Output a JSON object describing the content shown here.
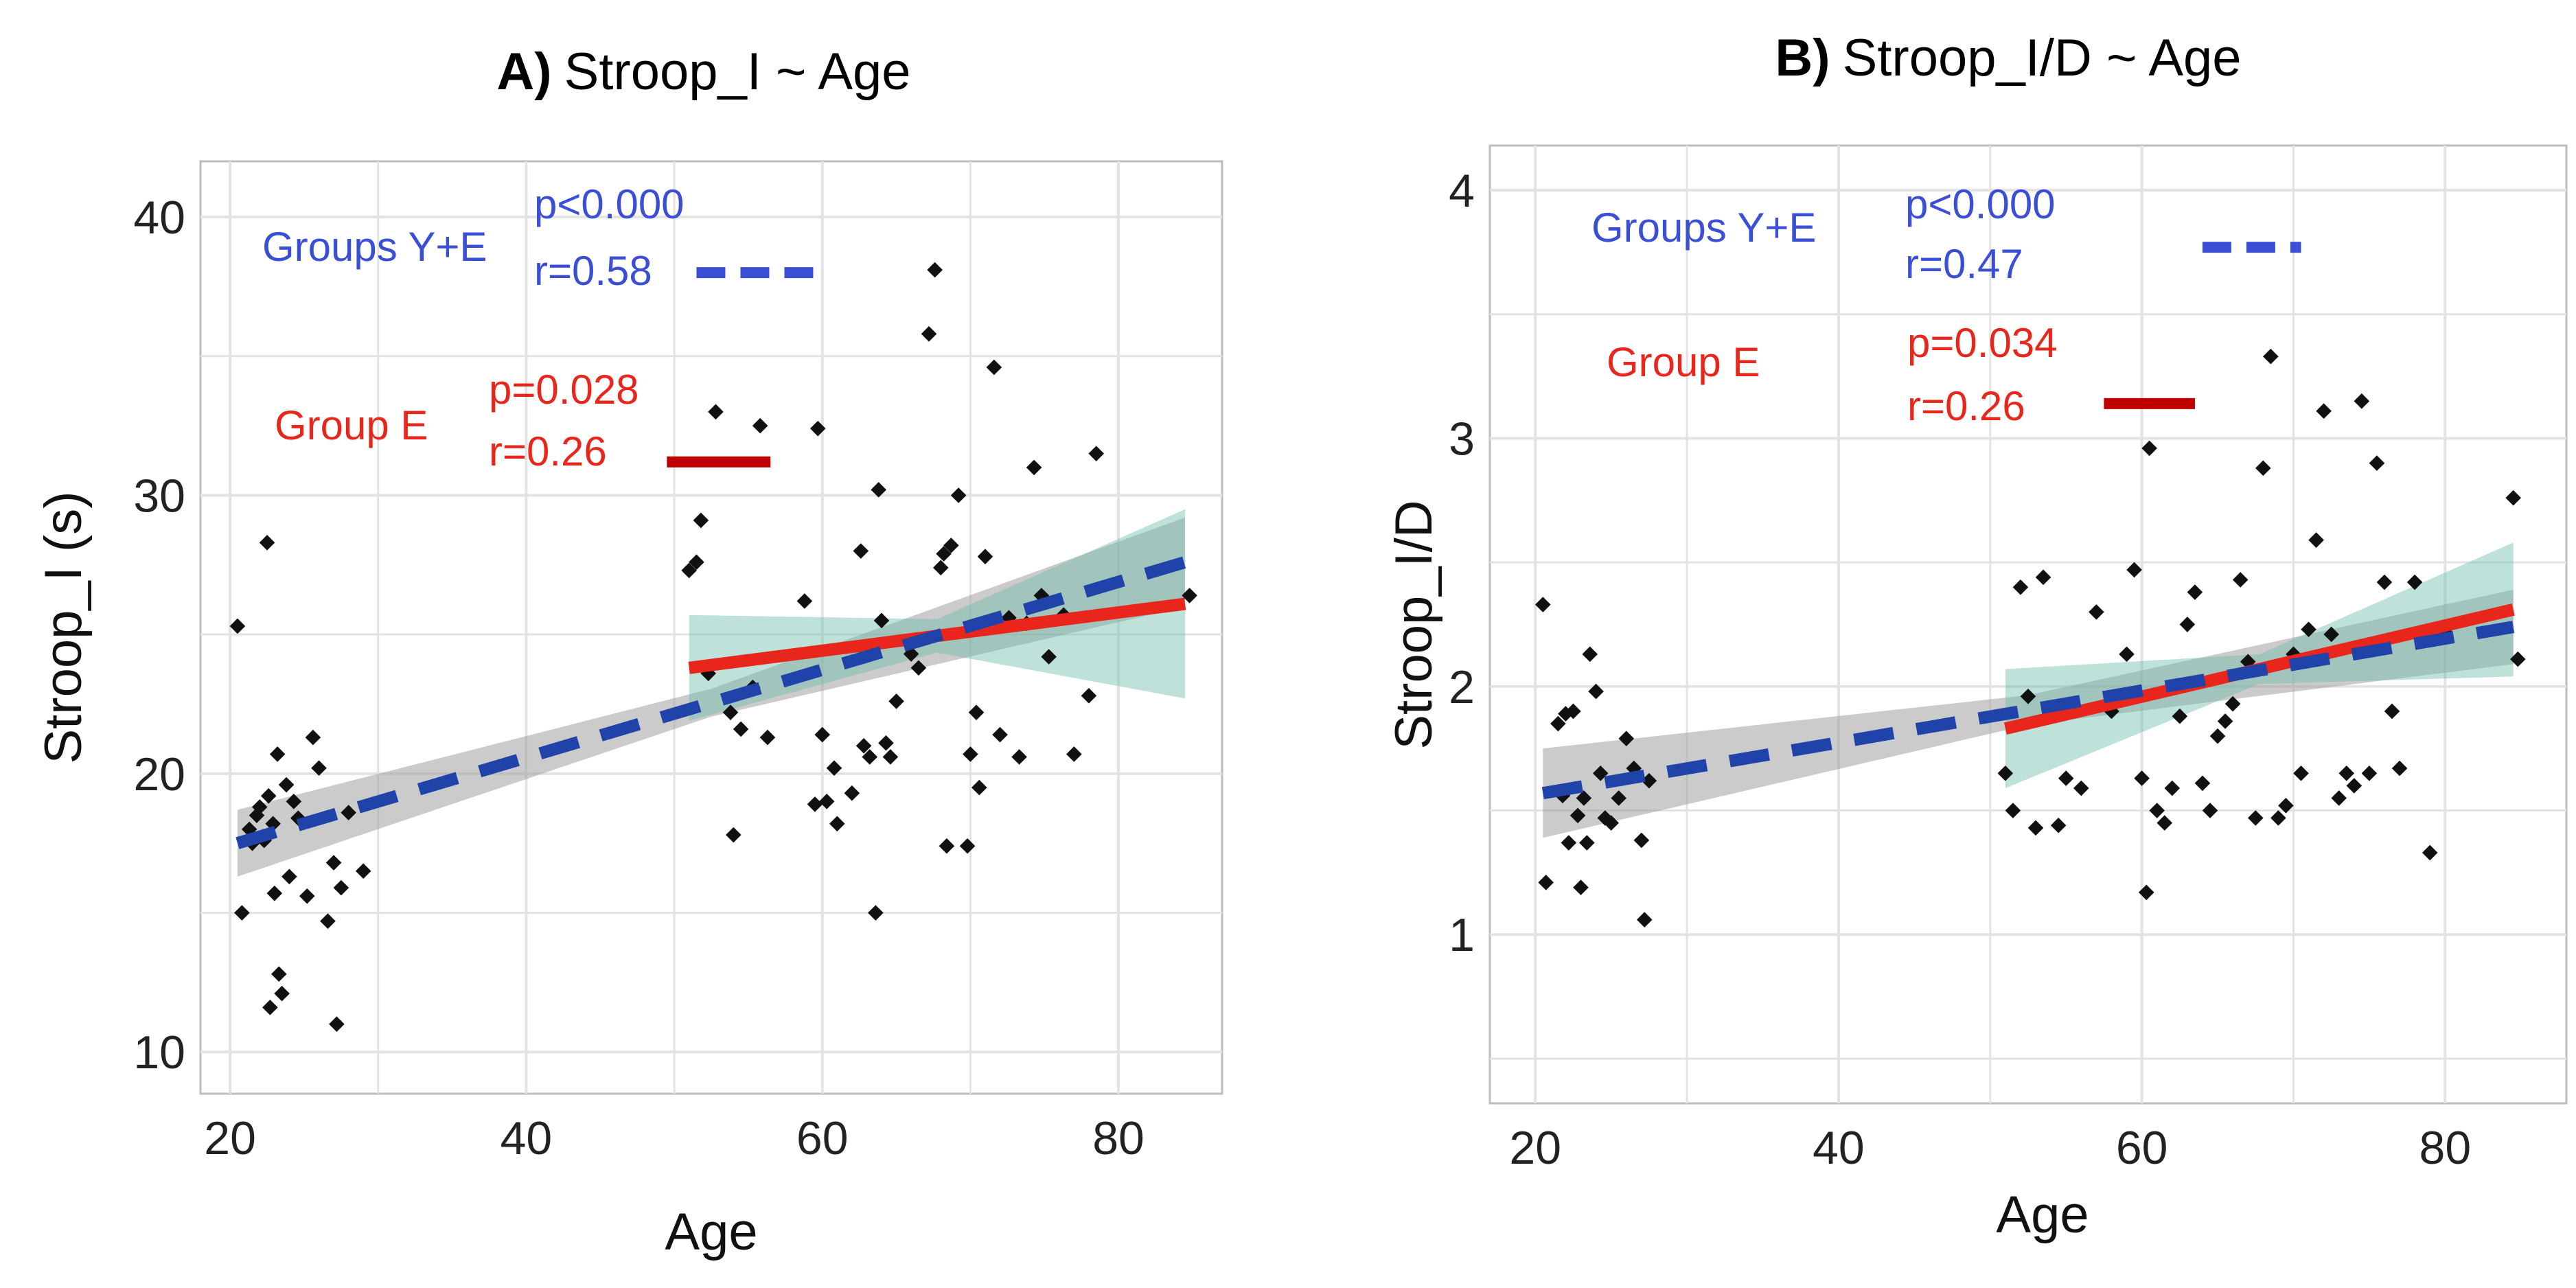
{
  "chart_data": [
    {
      "type": "scatter",
      "title": "Stroop_I ~ Age",
      "title_prefix": "A)",
      "xlabel": "Age",
      "ylabel": "Stroop_I (s)",
      "xlim": [
        18,
        87
      ],
      "ylim": [
        8.5,
        42.0
      ],
      "xticks": [
        20,
        40,
        60,
        80
      ],
      "yticks": [
        10,
        20,
        30,
        40
      ],
      "legend": {
        "all": {
          "label": "Groups Y+E",
          "p": "p<0.000",
          "r": "r=0.58",
          "line_y": 38.0,
          "line_x": [
            51.5,
            59.5
          ]
        },
        "elderly": {
          "label": "Group E",
          "p": "p=0.028",
          "r": "r=0.26",
          "line_y": 31.2,
          "line_x": [
            49.5,
            56.5
          ]
        }
      },
      "fits": {
        "all": {
          "x0": 20.5,
          "y0": 17.5,
          "x1": 84.5,
          "y1": 27.6,
          "band_start": 1.2,
          "band_mid": 0.5,
          "band_end": 1.6,
          "color": "#1f43a8"
        },
        "elderly": {
          "x0": 51,
          "y0": 23.8,
          "x1": 84.5,
          "y1": 26.1,
          "band_start": 1.9,
          "band_mid": 0.6,
          "band_end": 3.4,
          "color": "#e8261c"
        }
      },
      "points": [
        [
          20.5,
          25.3
        ],
        [
          20.8,
          15.0
        ],
        [
          21.3,
          18.0
        ],
        [
          21.5,
          17.5
        ],
        [
          21.8,
          18.5
        ],
        [
          22.0,
          18.8
        ],
        [
          22.3,
          17.6
        ],
        [
          22.5,
          28.3
        ],
        [
          22.6,
          19.2
        ],
        [
          22.7,
          11.6
        ],
        [
          22.9,
          18.2
        ],
        [
          23.0,
          15.7
        ],
        [
          23.2,
          20.7
        ],
        [
          23.3,
          12.8
        ],
        [
          23.5,
          12.1
        ],
        [
          23.8,
          19.6
        ],
        [
          24.0,
          16.3
        ],
        [
          24.3,
          19.0
        ],
        [
          24.6,
          18.4
        ],
        [
          25.2,
          15.6
        ],
        [
          25.6,
          21.3
        ],
        [
          26.0,
          20.2
        ],
        [
          26.6,
          14.7
        ],
        [
          27.0,
          16.8
        ],
        [
          27.2,
          11.0
        ],
        [
          27.5,
          15.9
        ],
        [
          28.0,
          18.6
        ],
        [
          29.0,
          16.5
        ],
        [
          51.0,
          27.3
        ],
        [
          51.5,
          27.6
        ],
        [
          51.8,
          29.1
        ],
        [
          52.3,
          23.6
        ],
        [
          52.8,
          33.0
        ],
        [
          53.8,
          22.2
        ],
        [
          54.0,
          17.8
        ],
        [
          54.5,
          21.6
        ],
        [
          55.3,
          23.1
        ],
        [
          55.8,
          32.5
        ],
        [
          56.3,
          21.3
        ],
        [
          58.8,
          26.2
        ],
        [
          59.5,
          18.9
        ],
        [
          59.7,
          32.4
        ],
        [
          60.0,
          21.4
        ],
        [
          60.3,
          19.0
        ],
        [
          60.8,
          20.2
        ],
        [
          61.0,
          18.2
        ],
        [
          62.0,
          19.3
        ],
        [
          62.6,
          28.0
        ],
        [
          62.8,
          21.0
        ],
        [
          63.2,
          20.6
        ],
        [
          63.6,
          15.0
        ],
        [
          63.8,
          30.2
        ],
        [
          64.0,
          25.5
        ],
        [
          64.3,
          21.1
        ],
        [
          64.6,
          20.6
        ],
        [
          65.0,
          22.6
        ],
        [
          66.0,
          24.3
        ],
        [
          66.5,
          23.8
        ],
        [
          67.2,
          35.8
        ],
        [
          67.6,
          38.1
        ],
        [
          68.0,
          27.4
        ],
        [
          68.2,
          27.9
        ],
        [
          68.4,
          17.4
        ],
        [
          68.7,
          28.2
        ],
        [
          69.2,
          30.0
        ],
        [
          69.8,
          17.4
        ],
        [
          70.0,
          20.7
        ],
        [
          70.4,
          22.2
        ],
        [
          70.6,
          19.5
        ],
        [
          71.0,
          27.8
        ],
        [
          71.6,
          34.6
        ],
        [
          72.0,
          21.4
        ],
        [
          72.6,
          25.6
        ],
        [
          73.3,
          20.6
        ],
        [
          73.8,
          25.4
        ],
        [
          74.3,
          31.0
        ],
        [
          74.8,
          26.4
        ],
        [
          75.3,
          24.2
        ],
        [
          76.3,
          25.7
        ],
        [
          77.0,
          20.7
        ],
        [
          78.0,
          22.8
        ],
        [
          78.5,
          31.5
        ],
        [
          84.8,
          26.4
        ]
      ]
    },
    {
      "type": "scatter",
      "title": "Stroop_I/D ~ Age",
      "title_prefix": "B)",
      "xlabel": "Age",
      "ylabel": "Stroop_I/D",
      "xlim": [
        17,
        88
      ],
      "ylim": [
        0.32,
        4.18
      ],
      "xticks": [
        20,
        40,
        60,
        80
      ],
      "yticks": [
        1,
        2,
        3,
        4
      ],
      "legend": {
        "all": {
          "label": "Groups Y+E",
          "p": "p<0.000",
          "r": "r=0.47",
          "line_y": 3.77,
          "line_x": [
            64,
            70.5
          ]
        },
        "elderly": {
          "label": "Group E",
          "p": "p=0.034",
          "r": "r=0.26",
          "line_y": 3.14,
          "line_x": [
            57.5,
            63.5
          ]
        }
      },
      "fits": {
        "all": {
          "x0": 20.5,
          "y0": 1.57,
          "x1": 84.5,
          "y1": 2.24,
          "band_start": 0.18,
          "band_mid": 0.06,
          "band_end": 0.15,
          "color": "#1f43a8"
        },
        "elderly": {
          "x0": 51,
          "y0": 1.83,
          "x1": 84.5,
          "y1": 2.31,
          "band_start": 0.24,
          "band_mid": 0.06,
          "band_end": 0.27,
          "color": "#e8261c"
        }
      },
      "points": [
        [
          20.5,
          2.33
        ],
        [
          20.7,
          1.21
        ],
        [
          21.5,
          1.85
        ],
        [
          21.8,
          1.56
        ],
        [
          22.0,
          1.89
        ],
        [
          22.2,
          1.37
        ],
        [
          22.5,
          1.9
        ],
        [
          22.8,
          1.48
        ],
        [
          23.0,
          1.19
        ],
        [
          23.2,
          1.55
        ],
        [
          23.4,
          1.37
        ],
        [
          23.6,
          2.13
        ],
        [
          24.0,
          1.98
        ],
        [
          24.3,
          1.65
        ],
        [
          24.6,
          1.47
        ],
        [
          25.0,
          1.45
        ],
        [
          25.5,
          1.55
        ],
        [
          26.0,
          1.79
        ],
        [
          26.5,
          1.67
        ],
        [
          27.0,
          1.38
        ],
        [
          27.2,
          1.06
        ],
        [
          27.5,
          1.62
        ],
        [
          51.0,
          1.65
        ],
        [
          51.5,
          1.5
        ],
        [
          52.0,
          2.4
        ],
        [
          52.5,
          1.96
        ],
        [
          53.0,
          1.43
        ],
        [
          53.5,
          2.44
        ],
        [
          54.5,
          1.44
        ],
        [
          55.0,
          1.63
        ],
        [
          56.0,
          1.59
        ],
        [
          57.0,
          2.3
        ],
        [
          58.0,
          1.9
        ],
        [
          59.0,
          2.13
        ],
        [
          59.5,
          2.47
        ],
        [
          60.0,
          1.63
        ],
        [
          60.3,
          1.17
        ],
        [
          60.5,
          2.96
        ],
        [
          61.0,
          1.5
        ],
        [
          61.5,
          1.45
        ],
        [
          62.0,
          1.59
        ],
        [
          62.5,
          1.88
        ],
        [
          63.0,
          2.25
        ],
        [
          63.5,
          2.38
        ],
        [
          64.0,
          1.61
        ],
        [
          64.5,
          1.5
        ],
        [
          65.0,
          1.8
        ],
        [
          65.5,
          1.86
        ],
        [
          66.0,
          1.93
        ],
        [
          66.5,
          2.43
        ],
        [
          67.0,
          2.1
        ],
        [
          67.5,
          1.47
        ],
        [
          68.0,
          2.88
        ],
        [
          68.5,
          3.33
        ],
        [
          69.0,
          1.47
        ],
        [
          69.5,
          1.52
        ],
        [
          70.0,
          2.13
        ],
        [
          70.5,
          1.65
        ],
        [
          71.0,
          2.23
        ],
        [
          71.5,
          2.59
        ],
        [
          72.0,
          3.11
        ],
        [
          72.5,
          2.21
        ],
        [
          73.0,
          1.55
        ],
        [
          73.5,
          1.65
        ],
        [
          74.0,
          1.6
        ],
        [
          74.5,
          3.15
        ],
        [
          75.0,
          1.65
        ],
        [
          75.5,
          2.9
        ],
        [
          76.0,
          2.42
        ],
        [
          76.5,
          1.9
        ],
        [
          77.0,
          1.67
        ],
        [
          78.0,
          2.42
        ],
        [
          79.0,
          1.33
        ],
        [
          80.0,
          2.22
        ],
        [
          84.5,
          2.76
        ],
        [
          84.8,
          2.11
        ]
      ]
    }
  ]
}
